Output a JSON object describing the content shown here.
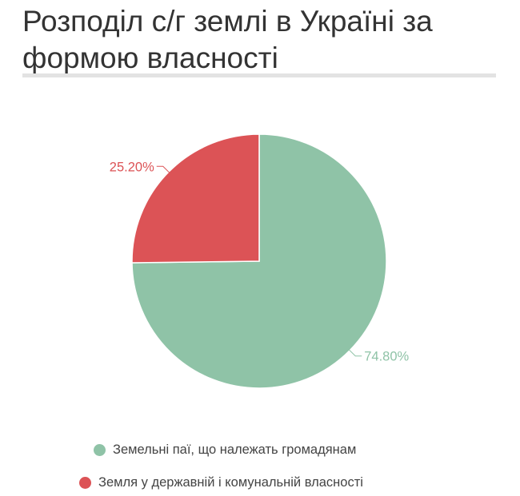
{
  "page": {
    "title": "Розподіл с/г землі в Україні за формою власності"
  },
  "chart_data": {
    "type": "pie",
    "title": "Розподіл с/г землі в Україні за формою власності",
    "categories": [
      "Земельні паї, що належать громадянам",
      "Земля у державній і комунальній власності"
    ],
    "values": [
      74.8,
      25.2
    ],
    "data_labels": [
      "74.80%",
      "25.20%"
    ],
    "colors": [
      "#8fc3a7",
      "#dc5356"
    ],
    "start_angle_deg": 0,
    "direction": "clockwise",
    "legend_position": "bottom"
  }
}
